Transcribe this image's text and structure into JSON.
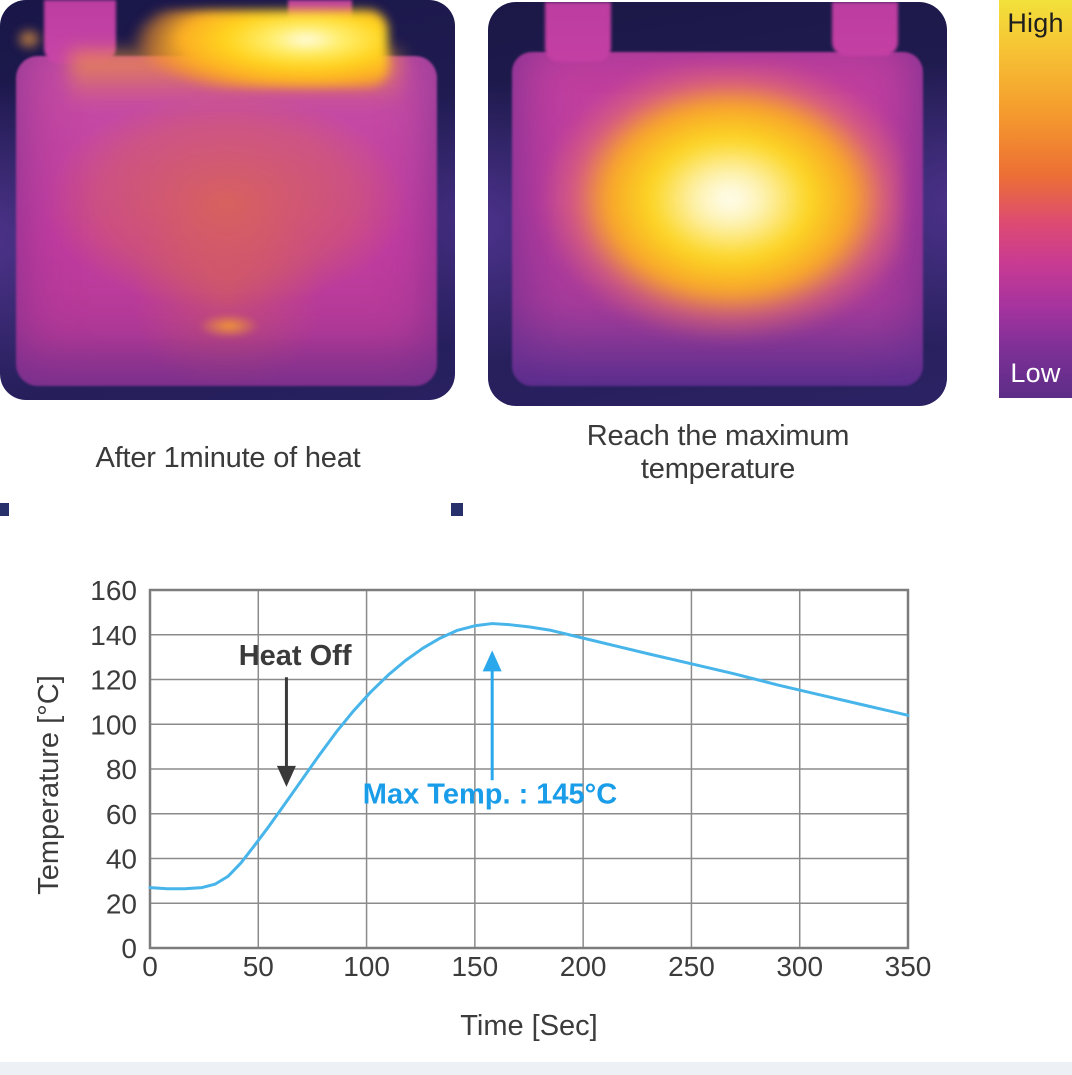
{
  "thermal_panels": {
    "left": {
      "caption": "After 1minute of heat"
    },
    "right": {
      "caption": "Reach the maximum temperature"
    }
  },
  "colorbar": {
    "high_label": "High",
    "low_label": "Low",
    "gradient_stops": [
      "#f2e13b",
      "#f6c434",
      "#f59c2e",
      "#ec6f34",
      "#dd4b72",
      "#c93b92",
      "#a6339e",
      "#7d3097",
      "#5c2d86"
    ],
    "stop_positions_pct": [
      0,
      12,
      28,
      44,
      56,
      66,
      77,
      88,
      100
    ]
  },
  "chart_data": {
    "type": "line",
    "title": "",
    "xlabel": "Time [Sec]",
    "ylabel": "Temperature [°C]",
    "xlim": [
      0,
      350
    ],
    "ylim": [
      0,
      160
    ],
    "xticks": [
      0,
      50,
      100,
      150,
      200,
      250,
      300,
      350
    ],
    "yticks": [
      0,
      20,
      40,
      60,
      80,
      100,
      120,
      140,
      160
    ],
    "grid": true,
    "grid_color": "#8b8b8b",
    "border_color": "#7d7d7d",
    "tick_color": "#3c3c3c",
    "series": [
      {
        "name": "temperature-curve",
        "color": "#47b5ea",
        "x": [
          0,
          8,
          16,
          24,
          30,
          36,
          42,
          48,
          55,
          62,
          70,
          78,
          86,
          94,
          102,
          110,
          118,
          126,
          134,
          142,
          150,
          158,
          166,
          175,
          185,
          200,
          215,
          230,
          250,
          270,
          290,
          310,
          330,
          350
        ],
        "y": [
          27,
          26.5,
          26.5,
          27,
          28.5,
          32,
          38,
          45.5,
          54.5,
          64,
          75,
          86,
          96.5,
          106,
          114.5,
          122,
          128.5,
          134,
          138.5,
          142,
          144,
          145,
          144.5,
          143.5,
          142,
          138.5,
          135,
          131.5,
          127,
          122.5,
          117.5,
          113,
          108.5,
          104
        ]
      }
    ],
    "annotations": [
      {
        "id": "heat-off",
        "text": "Heat Off",
        "text_color": "#3a3a3a",
        "text_x": 67,
        "text_y": 131,
        "arrow": {
          "x": 63,
          "tail_temp": 121,
          "tip_temp": 72,
          "color": "#3a3a3a"
        }
      },
      {
        "id": "max-temp",
        "text": "Max Temp. : 145°C",
        "text_color": "#1a9de8",
        "text_x": 157,
        "text_y": 69,
        "arrow": {
          "x": 158,
          "tail_temp": 75,
          "tip_temp": 133,
          "color": "#2ba8ec"
        }
      }
    ]
  }
}
